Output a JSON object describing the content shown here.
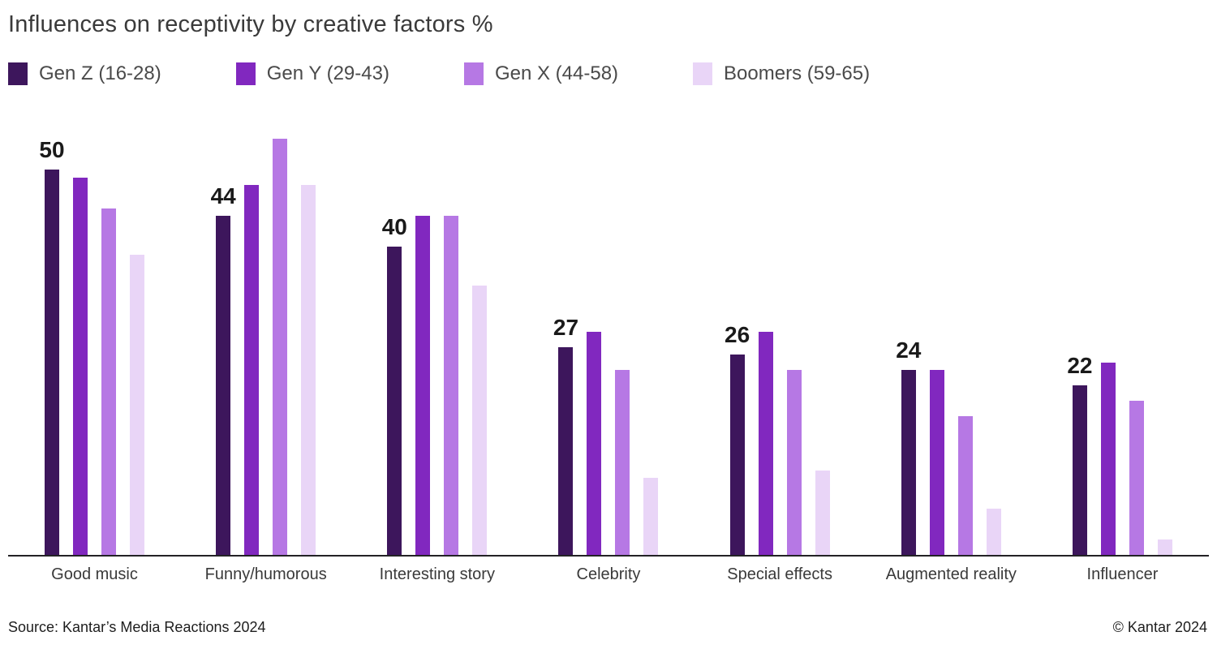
{
  "title": "Influences on receptivity by creative factors %",
  "legend": {
    "items": [
      {
        "label": "Gen Z (16-28)",
        "color": "#3d165c"
      },
      {
        "label": "Gen Y (29-43)",
        "color": "#8128bf"
      },
      {
        "label": "Gen X (44-58)",
        "color": "#b678e4"
      },
      {
        "label": "Boomers (59-65)",
        "color": "#e9d5f7"
      }
    ]
  },
  "chart_data": {
    "type": "bar",
    "title": "Influences on receptivity by creative factors %",
    "unit": "%",
    "categories": [
      "Good music",
      "Funny/humorous",
      "Interesting story",
      "Celebrity",
      "Special effects",
      "Augmented reality",
      "Influencer"
    ],
    "series": [
      {
        "name": "Gen Z (16-28)",
        "color": "#3d165c",
        "values": [
          50,
          44,
          40,
          27,
          26,
          24,
          22
        ]
      },
      {
        "name": "Gen Y (29-43)",
        "color": "#8128bf",
        "values": [
          49,
          48,
          44,
          29,
          29,
          24,
          25
        ]
      },
      {
        "name": "Gen X (44-58)",
        "color": "#b678e4",
        "values": [
          45,
          54,
          44,
          24,
          24,
          18,
          20
        ]
      },
      {
        "name": "Boomers (59-65)",
        "color": "#e9d5f7",
        "values": [
          39,
          48,
          35,
          10,
          11,
          6,
          2
        ]
      }
    ],
    "data_labels": {
      "series": "Gen Z (16-28)",
      "values": [
        50,
        44,
        40,
        27,
        26,
        24,
        22
      ]
    },
    "ylim": [
      0,
      57
    ],
    "grid": false,
    "legend_position": "top",
    "baseline_axis": "x"
  },
  "footer": {
    "source": "Source: Kantar’s Media Reactions 2024",
    "copyright": "© Kantar 2024"
  }
}
